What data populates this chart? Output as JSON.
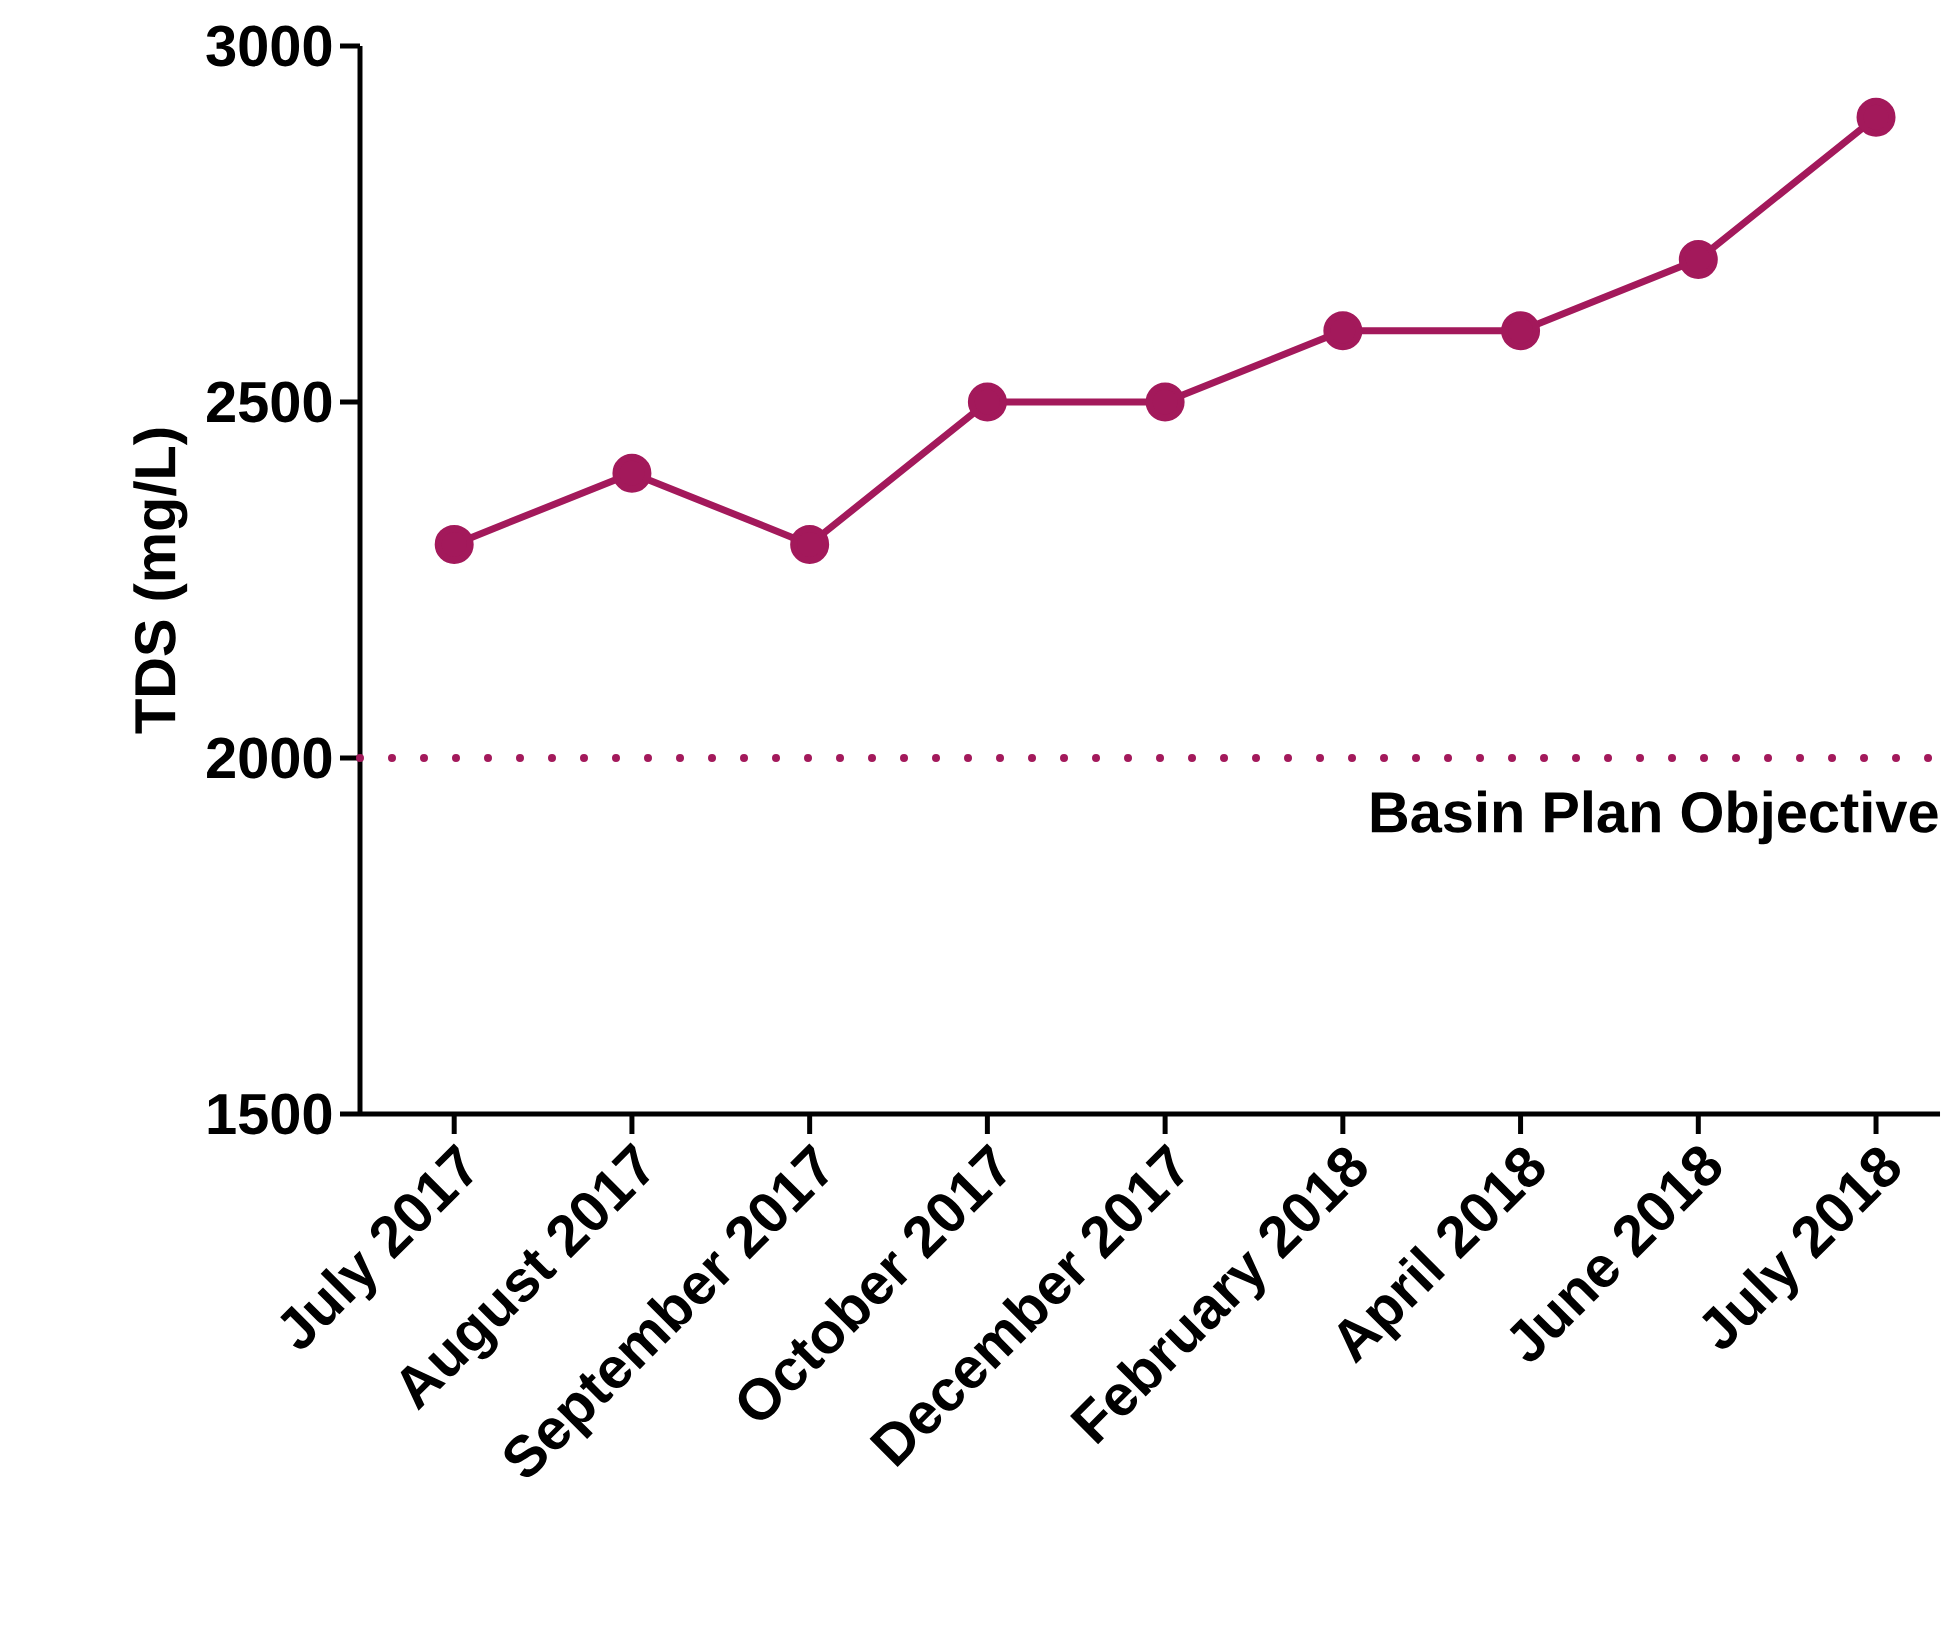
{
  "chart_data": {
    "type": "line",
    "ylabel": "TDS (mg/L)",
    "categories": [
      "July 2017",
      "August 2017",
      "September 2017",
      "October 2017",
      "December 2017",
      "February 2018",
      "April 2018",
      "June 2018",
      "July 2018"
    ],
    "series": [
      {
        "color": "#a3195b",
        "values": [
          2300,
          2400,
          2300,
          2500,
          2500,
          2600,
          2600,
          2700,
          2900
        ]
      }
    ],
    "ylim": [
      1500,
      3000
    ],
    "yticks": [
      1500,
      2000,
      2500,
      3000
    ],
    "ref_lines": [
      {
        "axis": "y",
        "value": 2000,
        "label": "Basin Plan Objective",
        "color": "#a3195b",
        "line_style": "dotted"
      }
    ],
    "marker": "circle",
    "line_style": "solid",
    "grid": false
  }
}
